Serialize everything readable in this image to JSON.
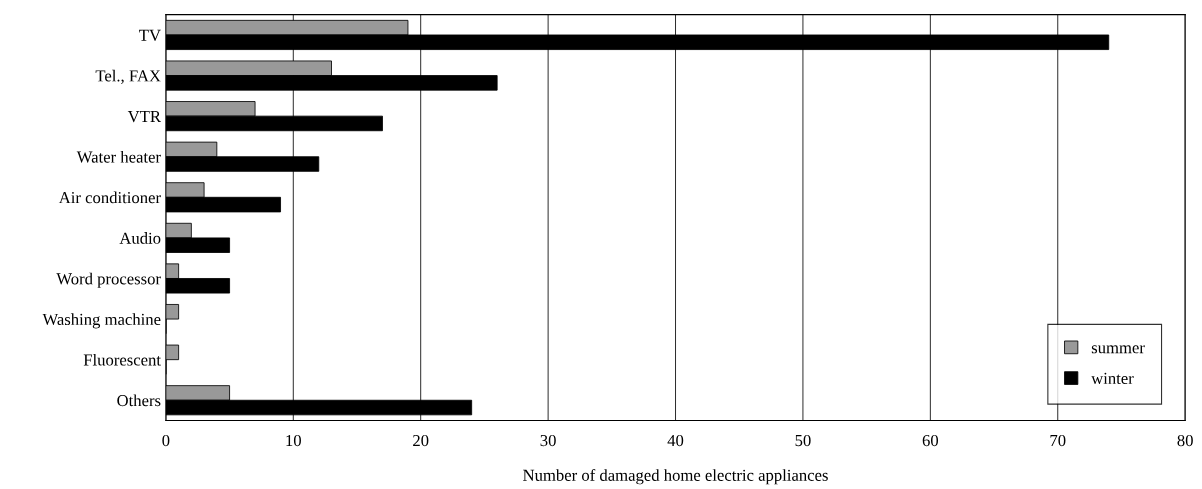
{
  "chart_data": {
    "type": "bar",
    "orientation": "horizontal",
    "xlabel": "Number of damaged home electric appliances",
    "categories": [
      "TV",
      "Tel., FAX",
      "VTR",
      "Water heater",
      "Air conditioner",
      "Audio",
      "Word processor",
      "Washing machine",
      "Fluorescent",
      "Others"
    ],
    "series": [
      {
        "name": "summer",
        "color": "#999999",
        "values": [
          19,
          13,
          7,
          4,
          3,
          2,
          1,
          1,
          1,
          5
        ]
      },
      {
        "name": "winter",
        "color": "#000000",
        "values": [
          74,
          26,
          17,
          12,
          9,
          5,
          5,
          0,
          0,
          24
        ]
      }
    ],
    "xlim": [
      0,
      80
    ],
    "xticks": [
      0,
      10,
      20,
      30,
      40,
      50,
      60,
      70,
      80
    ],
    "grid": "x",
    "legend": "bottom right"
  }
}
